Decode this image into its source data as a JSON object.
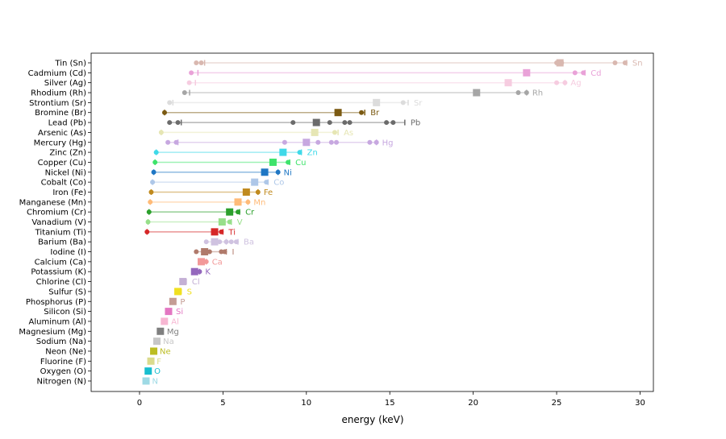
{
  "chart_data": {
    "type": "scatter",
    "title": "",
    "xlabel": "energy (keV)",
    "ylabel": "",
    "xlim": [
      -2.9,
      30.8
    ],
    "xticks": [
      0,
      5,
      10,
      15,
      20,
      25,
      30
    ],
    "grid": false,
    "legend": "none",
    "elements": [
      {
        "name": "Tin (Sn)",
        "symbol": "Sn",
        "color": "#d9b8b0",
        "lines": [
          3.4,
          3.7,
          25.0,
          25.3,
          28.5,
          29.1
        ],
        "edges": [
          3.9,
          29.2
        ],
        "main": 25.2
      },
      {
        "name": "Cadmium (Cd)",
        "symbol": "Cd",
        "color": "#e9a2d8",
        "lines": [
          3.1,
          26.1,
          26.6
        ],
        "edges": [
          3.5,
          26.7
        ],
        "main": 23.2
      },
      {
        "name": "Silver (Ag)",
        "symbol": "Ag",
        "color": "#f6cce0",
        "lines": [
          2.98,
          25.0,
          25.5
        ],
        "edges": [
          3.35,
          25.5
        ],
        "main": 22.1
      },
      {
        "name": "Rhodium (Rh)",
        "symbol": "Rh",
        "color": "#a6a6a6",
        "lines": [
          2.7,
          22.7,
          23.2
        ],
        "edges": [
          3.0,
          23.2
        ],
        "main": 20.2
      },
      {
        "name": "Strontium (Sr)",
        "symbol": "Sr",
        "color": "#dcdcdc",
        "lines": [
          1.8,
          15.8
        ],
        "edges": [
          2.0,
          16.1
        ],
        "main": 14.2
      },
      {
        "name": "Bromine (Br)",
        "symbol": "Br",
        "color": "#7b5a12",
        "lines": [
          1.5,
          13.3
        ],
        "edges": [
          1.5,
          13.5
        ],
        "main": 11.9
      },
      {
        "name": "Lead (Pb)",
        "symbol": "Pb",
        "color": "#6b6b6b",
        "lines": [
          1.8,
          2.3,
          9.2,
          11.4,
          12.3,
          12.6,
          14.8,
          15.2
        ],
        "edges": [
          2.5,
          15.9
        ],
        "main": 10.6
      },
      {
        "name": "Arsenic (As)",
        "symbol": "As",
        "color": "#e6e6b4",
        "lines": [
          1.3,
          11.7
        ],
        "edges": [
          1.3,
          11.9
        ],
        "main": 10.5
      },
      {
        "name": "Mercury (Hg)",
        "symbol": "Hg",
        "color": "#c7a8e0",
        "lines": [
          1.7,
          2.2,
          8.7,
          10.7,
          11.5,
          11.8,
          13.8,
          14.2
        ],
        "edges": [
          2.3,
          14.2
        ],
        "main": 10.0
      },
      {
        "name": "Zinc (Zn)",
        "symbol": "Zn",
        "color": "#3fd9e8",
        "lines": [
          1.0,
          9.6
        ],
        "edges": [
          1.0,
          9.7
        ],
        "main": 8.6
      },
      {
        "name": "Copper (Cu)",
        "symbol": "Cu",
        "color": "#3ee36b",
        "lines": [
          0.93,
          8.9
        ],
        "edges": [
          0.93,
          9.0
        ],
        "main": 8.0
      },
      {
        "name": "Nickel (Ni)",
        "symbol": "Ni",
        "color": "#1f77c4",
        "lines": [
          0.85,
          8.3
        ],
        "edges": [
          0.85,
          8.3
        ],
        "main": 7.5
      },
      {
        "name": "Cobalt (Co)",
        "symbol": "Co",
        "color": "#aec7e8",
        "lines": [
          0.78,
          7.6
        ],
        "edges": [
          0.78,
          7.7
        ],
        "main": 6.9
      },
      {
        "name": "Iron (Fe)",
        "symbol": "Fe",
        "color": "#c08a1e",
        "lines": [
          0.7,
          7.1
        ],
        "edges": [
          0.7,
          7.1
        ],
        "main": 6.4
      },
      {
        "name": "Manganese (Mn)",
        "symbol": "Mn",
        "color": "#ffbb78",
        "lines": [
          0.64,
          6.5
        ],
        "edges": [
          0.64,
          6.5
        ],
        "main": 5.9
      },
      {
        "name": "Chromium (Cr)",
        "symbol": "Cr",
        "color": "#2ca02c",
        "lines": [
          0.57,
          5.9
        ],
        "edges": [
          0.57,
          6.0
        ],
        "main": 5.4
      },
      {
        "name": "Vanadium (V)",
        "symbol": "V",
        "color": "#98df8a",
        "lines": [
          0.51,
          5.4
        ],
        "edges": [
          0.51,
          5.5
        ],
        "main": 4.95
      },
      {
        "name": "Titanium (Ti)",
        "symbol": "Ti",
        "color": "#d62728",
        "lines": [
          0.45,
          4.9
        ],
        "edges": [
          0.45,
          5.0
        ],
        "main": 4.5
      },
      {
        "name": "Barium (Ba)",
        "symbol": "Ba",
        "color": "#cfc2e0",
        "lines": [
          4.0,
          4.8,
          5.2,
          5.5,
          5.8
        ],
        "edges": [
          5.2,
          5.9
        ],
        "main": 4.5
      },
      {
        "name": "Iodine (I)",
        "symbol": "I",
        "color": "#b07a6b",
        "lines": [
          3.4,
          3.9,
          4.2,
          4.9,
          5.1
        ],
        "edges": [
          5.2
        ],
        "main": 3.9
      },
      {
        "name": "Calcium (Ca)",
        "symbol": "Ca",
        "color": "#f29999",
        "lines": [
          3.7,
          4.0
        ],
        "edges": [
          4.0
        ],
        "main": 3.7
      },
      {
        "name": "Potassium (K)",
        "symbol": "K",
        "color": "#9467bd",
        "lines": [
          3.3,
          3.6
        ],
        "edges": [
          3.6
        ],
        "main": 3.3
      },
      {
        "name": "Chlorine (Cl)",
        "symbol": "Cl",
        "color": "#c4b0d5",
        "lines": [
          2.6
        ],
        "edges": [
          2.8
        ],
        "main": 2.6
      },
      {
        "name": "Sulfur (S)",
        "symbol": "S",
        "color": "#f0e020",
        "lines": [
          2.3
        ],
        "edges": [
          2.5
        ],
        "main": 2.3
      },
      {
        "name": "Phosphorus (P)",
        "symbol": "P",
        "color": "#c49c94",
        "lines": [
          2.0
        ],
        "edges": [
          2.1
        ],
        "main": 2.0
      },
      {
        "name": "Silicon (Si)",
        "symbol": "Si",
        "color": "#e377c2",
        "lines": [
          1.74
        ],
        "edges": [
          1.84
        ],
        "main": 1.74
      },
      {
        "name": "Aluminum (Al)",
        "symbol": "Al",
        "color": "#f7b6d2",
        "lines": [
          1.49
        ],
        "edges": [
          1.56
        ],
        "main": 1.49
      },
      {
        "name": "Magnesium (Mg)",
        "symbol": "Mg",
        "color": "#7f7f7f",
        "lines": [
          1.25
        ],
        "edges": [
          1.3
        ],
        "main": 1.25
      },
      {
        "name": "Sodium (Na)",
        "symbol": "Na",
        "color": "#c7c7c7",
        "lines": [
          1.04
        ],
        "edges": [
          1.07
        ],
        "main": 1.04
      },
      {
        "name": "Neon (Ne)",
        "symbol": "Ne",
        "color": "#bcbd22",
        "lines": [
          0.85
        ],
        "edges": [
          0.87
        ],
        "main": 0.85
      },
      {
        "name": "Fluorine (F)",
        "symbol": "F",
        "color": "#dbdb8d",
        "lines": [
          0.68
        ],
        "edges": [
          0.69
        ],
        "main": 0.68
      },
      {
        "name": "Oxygen (O)",
        "symbol": "O",
        "color": "#17becf",
        "lines": [
          0.52
        ],
        "edges": [
          0.54
        ],
        "main": 0.52
      },
      {
        "name": "Nitrogen (N)",
        "symbol": "N",
        "color": "#9edae5",
        "lines": [
          0.39
        ],
        "edges": [
          0.41
        ],
        "main": 0.39
      }
    ]
  }
}
